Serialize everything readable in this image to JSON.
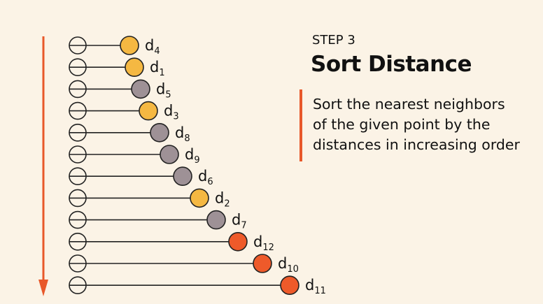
{
  "step": {
    "label": "STEP 3",
    "title": "Sort Distance"
  },
  "description": "Sort the nearest neighbors\nof the given point by the\ndistances in increasing order",
  "colors": {
    "background": "#fbf3e6",
    "arrow": "#e8582a",
    "accent": "#e8582a",
    "line": "#222222",
    "category_yellow": "#f5b842",
    "category_gray": "#9e9196",
    "category_orange": "#ee5a2a"
  },
  "neighbors": [
    {
      "base": "d",
      "sub": "4",
      "category": "yellow"
    },
    {
      "base": "d",
      "sub": "1",
      "category": "yellow"
    },
    {
      "base": "d",
      "sub": "5",
      "category": "gray"
    },
    {
      "base": "d",
      "sub": "3",
      "category": "yellow"
    },
    {
      "base": "d",
      "sub": "8",
      "category": "gray"
    },
    {
      "base": "d",
      "sub": "9",
      "category": "gray"
    },
    {
      "base": "d",
      "sub": "6",
      "category": "gray"
    },
    {
      "base": "d",
      "sub": "2",
      "category": "yellow"
    },
    {
      "base": "d",
      "sub": "7",
      "category": "gray"
    },
    {
      "base": "d",
      "sub": "12",
      "category": "orange"
    },
    {
      "base": "d",
      "sub": "10",
      "category": "orange"
    },
    {
      "base": "d",
      "sub": "11",
      "category": "orange"
    }
  ]
}
